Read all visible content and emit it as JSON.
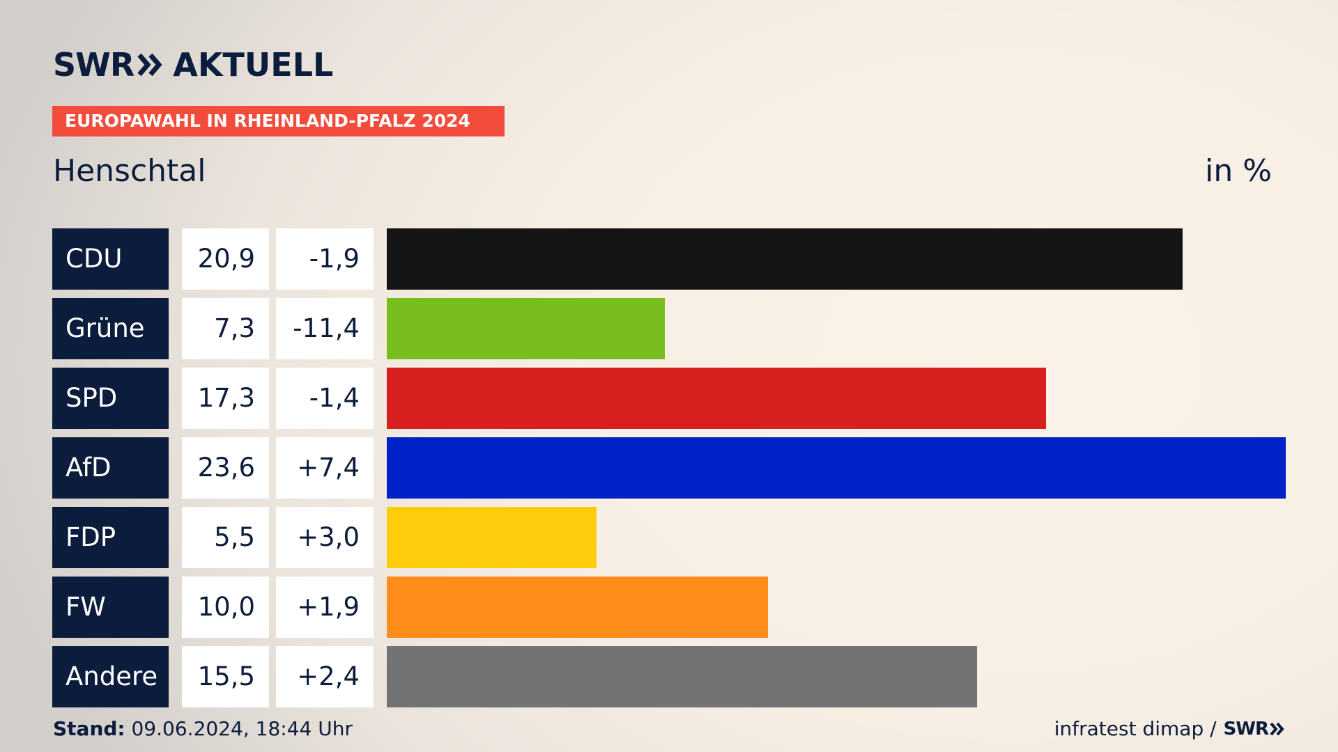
{
  "header": {
    "logo_brand": "SWR",
    "logo_product": "AKTUELL",
    "banner": "EUROPAWAHL IN RHEINLAND-PFALZ 2024",
    "place": "Henschtal",
    "unit": "in %"
  },
  "footer": {
    "stand_label": "Stand:",
    "stand_value": " 09.06.2024, 18:44 Uhr",
    "source": "infratest dimap /",
    "source_brand": "SWR"
  },
  "colors": {
    "navy": "#0c1c3c",
    "banner": "#f34c3c"
  },
  "chart_data": {
    "type": "bar",
    "orientation": "horizontal",
    "title": "Henschtal",
    "ylabel": "in %",
    "categories": [
      "CDU",
      "Grüne",
      "SPD",
      "AfD",
      "FDP",
      "FW",
      "Andere"
    ],
    "values": [
      20.9,
      7.3,
      17.3,
      23.6,
      5.5,
      10.0,
      15.5
    ],
    "value_labels": [
      "20,9",
      "7,3",
      "17,3",
      "23,6",
      "5,5",
      "10,0",
      "15,5"
    ],
    "changes": [
      -1.9,
      -11.4,
      -1.4,
      7.4,
      3.0,
      1.9,
      2.4
    ],
    "change_labels": [
      "-1,9",
      "-11,4",
      "-1,4",
      "+7,4",
      "+3,0",
      "+1,9",
      "+2,4"
    ],
    "colors": [
      "#141414",
      "#78bd1e",
      "#d71f1f",
      "#0021c7",
      "#fdcd0b",
      "#fd8c1a",
      "#737373"
    ],
    "xlim": [
      0,
      23.6
    ]
  }
}
